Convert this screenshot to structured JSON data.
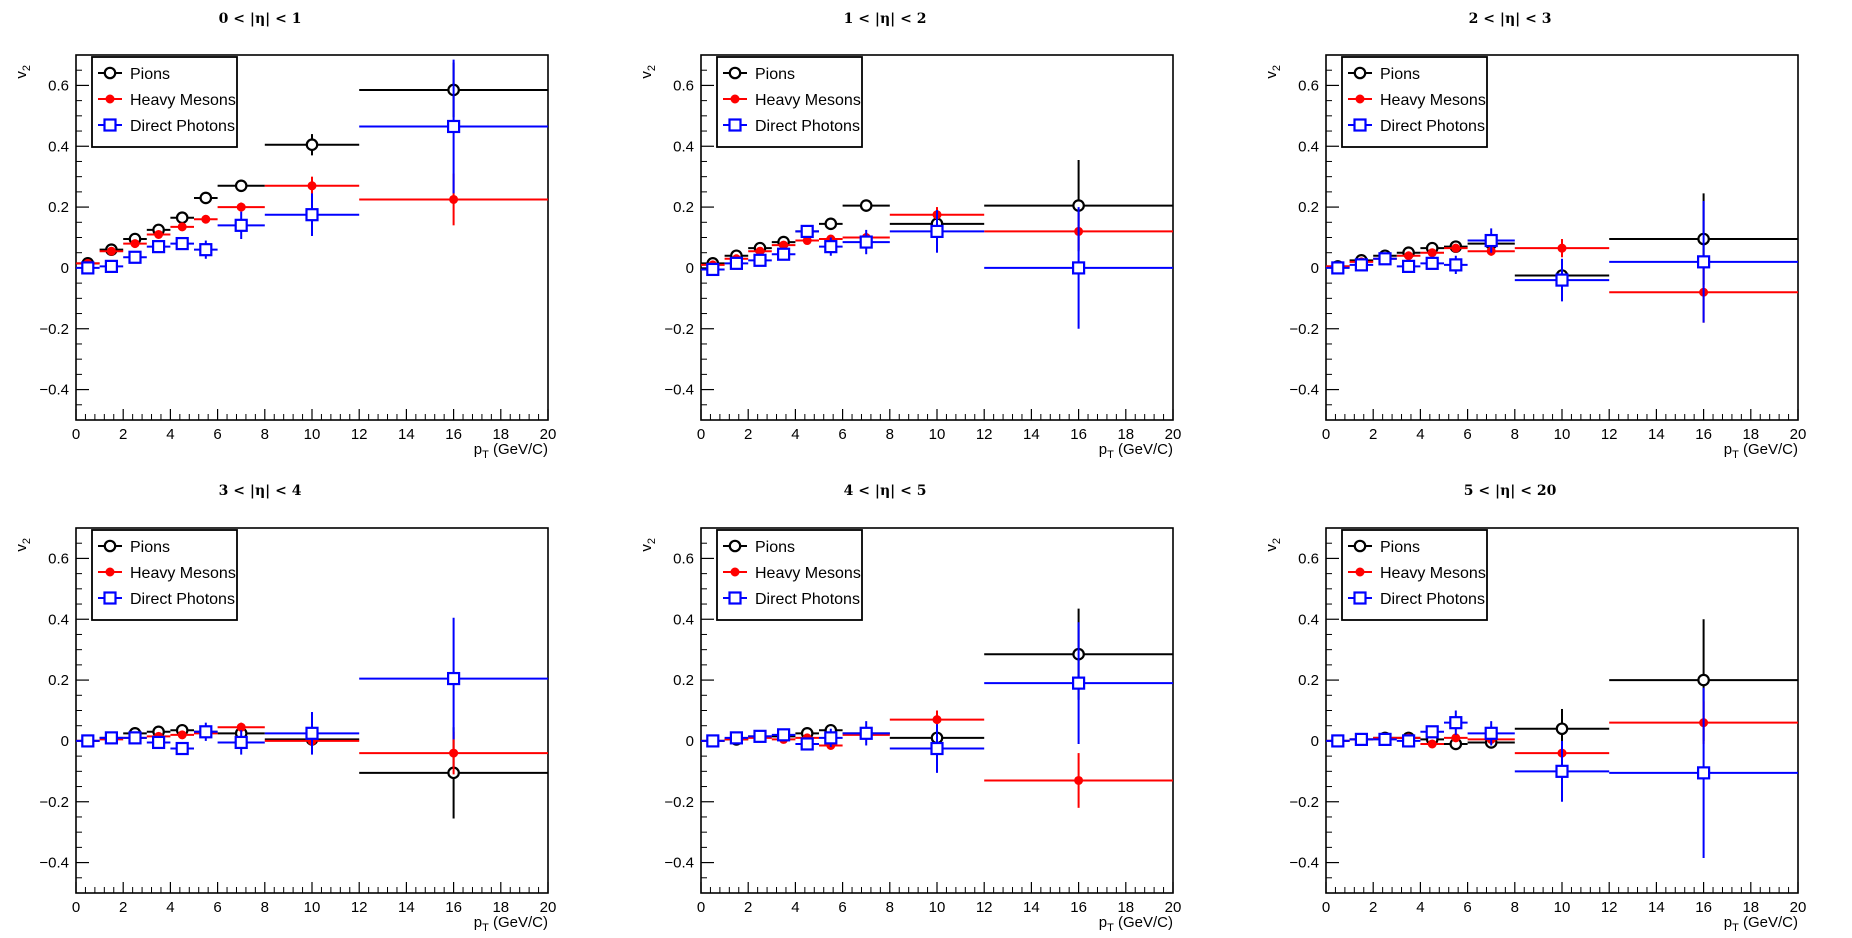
{
  "colors": {
    "pions": "#000000",
    "heavy_mesons": "#ff0000",
    "direct_photons": "#0000ff"
  },
  "chart_data": [
    {
      "type": "scatter",
      "title": "0 < |η| < 1",
      "xlabel": "p_T (GeV/C)",
      "ylabel": "v_2",
      "xlim": [
        0,
        20
      ],
      "ylim": [
        -0.5,
        0.7
      ],
      "xticks": [
        "0",
        "2",
        "4",
        "6",
        "8",
        "10",
        "12",
        "14",
        "16",
        "18",
        "20"
      ],
      "yticks": [
        "−0.4",
        "−0.2",
        "0",
        "0.2",
        "0.4",
        "0.6"
      ],
      "legend": [
        "Pions",
        "Heavy Mesons",
        "Direct Photons"
      ],
      "series": [
        {
          "name": "Pions",
          "marker": "open-circle",
          "color": "pions",
          "x": [
            0.5,
            1.5,
            2.5,
            3.5,
            4.5,
            5.5,
            7,
            10,
            16
          ],
          "xerr": [
            0.5,
            0.5,
            0.5,
            0.5,
            0.5,
            0.5,
            1,
            2,
            4
          ],
          "y": [
            0.015,
            0.06,
            0.095,
            0.125,
            0.165,
            0.23,
            0.27,
            0.405,
            0.585
          ],
          "yerr": [
            0.01,
            0.01,
            0.01,
            0.015,
            0.015,
            0.015,
            0.02,
            0.035,
            0.09
          ]
        },
        {
          "name": "Heavy Mesons",
          "marker": "filled-circle",
          "color": "heavy_mesons",
          "x": [
            0.5,
            1.5,
            2.5,
            3.5,
            4.5,
            5.5,
            7,
            10,
            16
          ],
          "xerr": [
            0.5,
            0.5,
            0.5,
            0.5,
            0.5,
            0.5,
            1,
            2,
            4
          ],
          "y": [
            0.015,
            0.055,
            0.08,
            0.11,
            0.135,
            0.16,
            0.2,
            0.27,
            0.225
          ],
          "yerr": [
            0.008,
            0.008,
            0.01,
            0.01,
            0.01,
            0.012,
            0.015,
            0.03,
            0.085
          ]
        },
        {
          "name": "Direct Photons",
          "marker": "open-square",
          "color": "direct_photons",
          "x": [
            0.5,
            1.5,
            2.5,
            3.5,
            4.5,
            5.5,
            7,
            10,
            16
          ],
          "xerr": [
            0.5,
            0.5,
            0.5,
            0.5,
            0.5,
            0.5,
            1,
            2,
            4
          ],
          "y": [
            0.0,
            0.005,
            0.035,
            0.07,
            0.08,
            0.06,
            0.14,
            0.175,
            0.465
          ],
          "yerr": [
            0.01,
            0.01,
            0.015,
            0.02,
            0.02,
            0.03,
            0.045,
            0.07,
            0.22
          ]
        }
      ]
    },
    {
      "type": "scatter",
      "title": "1 < |η| < 2",
      "xlabel": "p_T (GeV/C)",
      "ylabel": "v_2",
      "xlim": [
        0,
        20
      ],
      "ylim": [
        -0.5,
        0.7
      ],
      "xticks": [
        "0",
        "2",
        "4",
        "6",
        "8",
        "10",
        "12",
        "14",
        "16",
        "18",
        "20"
      ],
      "yticks": [
        "−0.4",
        "−0.2",
        "0",
        "0.2",
        "0.4",
        "0.6"
      ],
      "legend": [
        "Pions",
        "Heavy Mesons",
        "Direct Photons"
      ],
      "series": [
        {
          "name": "Pions",
          "marker": "open-circle",
          "color": "pions",
          "x": [
            0.5,
            1.5,
            2.5,
            3.5,
            4.5,
            5.5,
            7,
            10,
            16
          ],
          "xerr": [
            0.5,
            0.5,
            0.5,
            0.5,
            0.5,
            0.5,
            1,
            2,
            4
          ],
          "y": [
            0.015,
            0.04,
            0.065,
            0.085,
            0.12,
            0.145,
            0.205,
            0.145,
            0.205
          ],
          "yerr": [
            0.01,
            0.01,
            0.01,
            0.012,
            0.015,
            0.015,
            0.02,
            0.04,
            0.15
          ]
        },
        {
          "name": "Heavy Mesons",
          "marker": "filled-circle",
          "color": "heavy_mesons",
          "x": [
            0.5,
            1.5,
            2.5,
            3.5,
            4.5,
            5.5,
            7,
            10,
            16
          ],
          "xerr": [
            0.5,
            0.5,
            0.5,
            0.5,
            0.5,
            0.5,
            1,
            2,
            4
          ],
          "y": [
            0.01,
            0.03,
            0.055,
            0.075,
            0.09,
            0.095,
            0.1,
            0.175,
            0.12
          ],
          "yerr": [
            0.008,
            0.008,
            0.01,
            0.01,
            0.012,
            0.012,
            0.015,
            0.025,
            0.06
          ]
        },
        {
          "name": "Direct Photons",
          "marker": "open-square",
          "color": "direct_photons",
          "x": [
            0.5,
            1.5,
            2.5,
            3.5,
            4.5,
            5.5,
            7,
            10,
            16
          ],
          "xerr": [
            0.5,
            0.5,
            0.5,
            0.5,
            0.5,
            0.5,
            1,
            2,
            4
          ],
          "y": [
            -0.005,
            0.015,
            0.025,
            0.045,
            0.12,
            0.07,
            0.085,
            0.12,
            0.0
          ],
          "yerr": [
            0.01,
            0.015,
            0.015,
            0.02,
            0.02,
            0.03,
            0.04,
            0.07,
            0.2
          ]
        }
      ]
    },
    {
      "type": "scatter",
      "title": "2 < |η| < 3",
      "xlabel": "p_T (GeV/C)",
      "ylabel": "v_2",
      "xlim": [
        0,
        20
      ],
      "ylim": [
        -0.5,
        0.7
      ],
      "xticks": [
        "0",
        "2",
        "4",
        "6",
        "8",
        "10",
        "12",
        "14",
        "16",
        "18",
        "20"
      ],
      "yticks": [
        "−0.4",
        "−0.2",
        "0",
        "0.2",
        "0.4",
        "0.6"
      ],
      "legend": [
        "Pions",
        "Heavy Mesons",
        "Direct Photons"
      ],
      "series": [
        {
          "name": "Pions",
          "marker": "open-circle",
          "color": "pions",
          "x": [
            0.5,
            1.5,
            2.5,
            3.5,
            4.5,
            5.5,
            7,
            10,
            16
          ],
          "xerr": [
            0.5,
            0.5,
            0.5,
            0.5,
            0.5,
            0.5,
            1,
            2,
            4
          ],
          "y": [
            0.005,
            0.025,
            0.04,
            0.05,
            0.065,
            0.07,
            0.08,
            -0.025,
            0.095
          ],
          "yerr": [
            0.008,
            0.01,
            0.01,
            0.01,
            0.01,
            0.012,
            0.02,
            0.03,
            0.15
          ]
        },
        {
          "name": "Heavy Mesons",
          "marker": "filled-circle",
          "color": "heavy_mesons",
          "x": [
            0.5,
            1.5,
            2.5,
            3.5,
            4.5,
            5.5,
            7,
            10,
            16
          ],
          "xerr": [
            0.5,
            0.5,
            0.5,
            0.5,
            0.5,
            0.5,
            1,
            2,
            4
          ],
          "y": [
            0.005,
            0.02,
            0.03,
            0.04,
            0.05,
            0.065,
            0.055,
            0.065,
            -0.08
          ],
          "yerr": [
            0.008,
            0.008,
            0.01,
            0.01,
            0.01,
            0.012,
            0.015,
            0.03,
            0.1
          ]
        },
        {
          "name": "Direct Photons",
          "marker": "open-square",
          "color": "direct_photons",
          "x": [
            0.5,
            1.5,
            2.5,
            3.5,
            4.5,
            5.5,
            7,
            10,
            16
          ],
          "xerr": [
            0.5,
            0.5,
            0.5,
            0.5,
            0.5,
            0.5,
            1,
            2,
            4
          ],
          "y": [
            0.0,
            0.01,
            0.03,
            0.005,
            0.015,
            0.01,
            0.09,
            -0.04,
            0.02
          ],
          "yerr": [
            0.01,
            0.01,
            0.015,
            0.015,
            0.02,
            0.03,
            0.04,
            0.07,
            0.2
          ]
        }
      ]
    },
    {
      "type": "scatter",
      "title": "3 < |η| < 4",
      "xlabel": "p_T (GeV/C)",
      "ylabel": "v_2",
      "xlim": [
        0,
        20
      ],
      "ylim": [
        -0.5,
        0.7
      ],
      "xticks": [
        "0",
        "2",
        "4",
        "6",
        "8",
        "10",
        "12",
        "14",
        "16",
        "18",
        "20"
      ],
      "yticks": [
        "−0.4",
        "−0.2",
        "0",
        "0.2",
        "0.4",
        "0.6"
      ],
      "legend": [
        "Pions",
        "Heavy Mesons",
        "Direct Photons"
      ],
      "series": [
        {
          "name": "Pions",
          "marker": "open-circle",
          "color": "pions",
          "x": [
            0.5,
            1.5,
            2.5,
            3.5,
            4.5,
            5.5,
            7,
            10,
            16
          ],
          "xerr": [
            0.5,
            0.5,
            0.5,
            0.5,
            0.5,
            0.5,
            1,
            2,
            4
          ],
          "y": [
            0.0,
            0.01,
            0.025,
            0.03,
            0.035,
            0.03,
            0.025,
            0.005,
            -0.105
          ],
          "yerr": [
            0.008,
            0.01,
            0.01,
            0.01,
            0.01,
            0.012,
            0.02,
            0.03,
            0.15
          ]
        },
        {
          "name": "Heavy Mesons",
          "marker": "filled-circle",
          "color": "heavy_mesons",
          "x": [
            0.5,
            1.5,
            2.5,
            3.5,
            4.5,
            5.5,
            7,
            10,
            16
          ],
          "xerr": [
            0.5,
            0.5,
            0.5,
            0.5,
            0.5,
            0.5,
            1,
            2,
            4
          ],
          "y": [
            0.0,
            0.005,
            0.01,
            0.015,
            0.02,
            0.025,
            0.045,
            0.0,
            -0.04
          ],
          "yerr": [
            0.008,
            0.008,
            0.01,
            0.01,
            0.01,
            0.012,
            0.015,
            0.025,
            0.07
          ]
        },
        {
          "name": "Direct Photons",
          "marker": "open-square",
          "color": "direct_photons",
          "x": [
            0.5,
            1.5,
            2.5,
            3.5,
            4.5,
            5.5,
            7,
            10,
            16
          ],
          "xerr": [
            0.5,
            0.5,
            0.5,
            0.5,
            0.5,
            0.5,
            1,
            2,
            4
          ],
          "y": [
            0.0,
            0.01,
            0.01,
            -0.005,
            -0.025,
            0.03,
            -0.005,
            0.025,
            0.205
          ],
          "yerr": [
            0.01,
            0.01,
            0.015,
            0.015,
            0.02,
            0.03,
            0.04,
            0.07,
            0.2
          ]
        }
      ]
    },
    {
      "type": "scatter",
      "title": "4 < |η| < 5",
      "xlabel": "p_T (GeV/C)",
      "ylabel": "v_2",
      "xlim": [
        0,
        20
      ],
      "ylim": [
        -0.5,
        0.7
      ],
      "xticks": [
        "0",
        "2",
        "4",
        "6",
        "8",
        "10",
        "12",
        "14",
        "16",
        "18",
        "20"
      ],
      "yticks": [
        "−0.4",
        "−0.2",
        "0",
        "0.2",
        "0.4",
        "0.6"
      ],
      "legend": [
        "Pions",
        "Heavy Mesons",
        "Direct Photons"
      ],
      "series": [
        {
          "name": "Pions",
          "marker": "open-circle",
          "color": "pions",
          "x": [
            0.5,
            1.5,
            2.5,
            3.5,
            4.5,
            5.5,
            7,
            10,
            16
          ],
          "xerr": [
            0.5,
            0.5,
            0.5,
            0.5,
            0.5,
            0.5,
            1,
            2,
            4
          ],
          "y": [
            0.0,
            0.005,
            0.015,
            0.015,
            0.025,
            0.035,
            0.025,
            0.01,
            0.285
          ],
          "yerr": [
            0.008,
            0.01,
            0.01,
            0.01,
            0.01,
            0.012,
            0.02,
            0.03,
            0.15
          ]
        },
        {
          "name": "Heavy Mesons",
          "marker": "filled-circle",
          "color": "heavy_mesons",
          "x": [
            0.5,
            1.5,
            2.5,
            3.5,
            4.5,
            5.5,
            7,
            10,
            16
          ],
          "xerr": [
            0.5,
            0.5,
            0.5,
            0.5,
            0.5,
            0.5,
            1,
            2,
            4
          ],
          "y": [
            0.0,
            0.005,
            0.01,
            0.005,
            0.01,
            -0.015,
            0.02,
            0.07,
            -0.13
          ],
          "yerr": [
            0.008,
            0.008,
            0.01,
            0.01,
            0.01,
            0.012,
            0.015,
            0.03,
            0.09
          ]
        },
        {
          "name": "Direct Photons",
          "marker": "open-square",
          "color": "direct_photons",
          "x": [
            0.5,
            1.5,
            2.5,
            3.5,
            4.5,
            5.5,
            7,
            10,
            16
          ],
          "xerr": [
            0.5,
            0.5,
            0.5,
            0.5,
            0.5,
            0.5,
            1,
            2,
            4
          ],
          "y": [
            0.0,
            0.01,
            0.015,
            0.02,
            -0.01,
            0.01,
            0.025,
            -0.025,
            0.19
          ],
          "yerr": [
            0.01,
            0.01,
            0.015,
            0.015,
            0.02,
            0.03,
            0.04,
            0.08,
            0.2
          ]
        }
      ]
    },
    {
      "type": "scatter",
      "title": "5 < |η| < 20",
      "xlabel": "p_T (GeV/C)",
      "ylabel": "v_2",
      "xlim": [
        0,
        20
      ],
      "ylim": [
        -0.5,
        0.7
      ],
      "xticks": [
        "0",
        "2",
        "4",
        "6",
        "8",
        "10",
        "12",
        "14",
        "16",
        "18",
        "20"
      ],
      "yticks": [
        "−0.4",
        "−0.2",
        "0",
        "0.2",
        "0.4",
        "0.6"
      ],
      "legend": [
        "Pions",
        "Heavy Mesons",
        "Direct Photons"
      ],
      "series": [
        {
          "name": "Pions",
          "marker": "open-circle",
          "color": "pions",
          "x": [
            0.5,
            1.5,
            2.5,
            3.5,
            4.5,
            5.5,
            7,
            10,
            16
          ],
          "xerr": [
            0.5,
            0.5,
            0.5,
            0.5,
            0.5,
            0.5,
            1,
            2,
            4
          ],
          "y": [
            0.0,
            0.005,
            0.01,
            0.01,
            0.005,
            -0.01,
            -0.005,
            0.04,
            0.2
          ],
          "yerr": [
            0.008,
            0.01,
            0.01,
            0.01,
            0.01,
            0.012,
            0.02,
            0.065,
            0.2
          ]
        },
        {
          "name": "Heavy Mesons",
          "marker": "filled-circle",
          "color": "heavy_mesons",
          "x": [
            0.5,
            1.5,
            2.5,
            3.5,
            4.5,
            5.5,
            7,
            10,
            16
          ],
          "xerr": [
            0.5,
            0.5,
            0.5,
            0.5,
            0.5,
            0.5,
            1,
            2,
            4
          ],
          "y": [
            0.0,
            0.005,
            0.01,
            0.01,
            -0.01,
            0.01,
            0.005,
            -0.04,
            0.06
          ],
          "yerr": [
            0.008,
            0.008,
            0.01,
            0.01,
            0.01,
            0.012,
            0.015,
            0.03,
            0.07
          ]
        },
        {
          "name": "Direct Photons",
          "marker": "open-square",
          "color": "direct_photons",
          "x": [
            0.5,
            1.5,
            2.5,
            3.5,
            4.5,
            5.5,
            7,
            10,
            16
          ],
          "xerr": [
            0.5,
            0.5,
            0.5,
            0.5,
            0.5,
            0.5,
            1,
            2,
            4
          ],
          "y": [
            0.0,
            0.005,
            0.005,
            0.0,
            0.03,
            0.06,
            0.025,
            -0.1,
            -0.105
          ],
          "yerr": [
            0.01,
            0.01,
            0.015,
            0.015,
            0.02,
            0.04,
            0.04,
            0.1,
            0.28
          ]
        }
      ]
    }
  ]
}
